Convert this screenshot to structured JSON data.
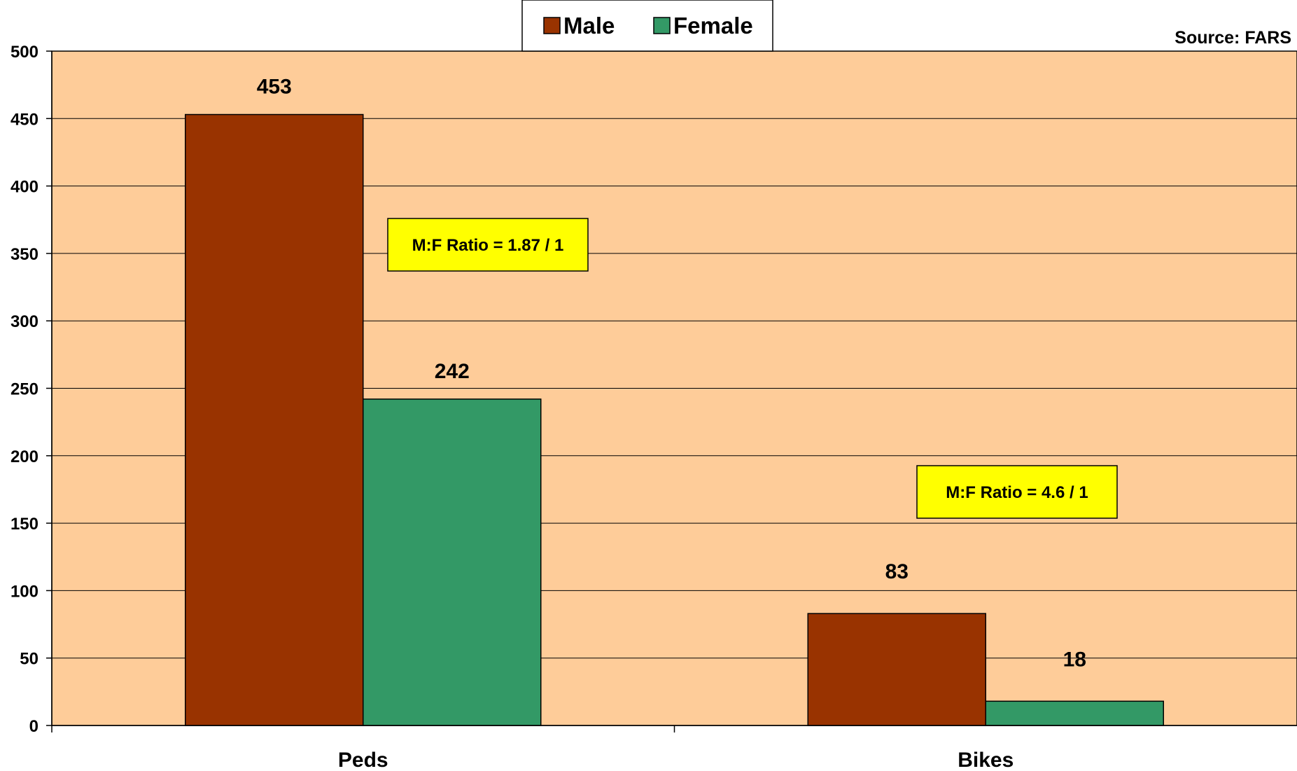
{
  "source_note": "Source: FARS",
  "annotations": [
    {
      "text": "M:F Ratio = 1.87 / 1"
    },
    {
      "text": "M:F Ratio = 4.6 / 1"
    }
  ],
  "colors": {
    "plot_background": "#FECC99",
    "male": "#993300",
    "female": "#339966",
    "annotation_fill": "#FFFF00",
    "gridline": "#000000"
  },
  "chart_data": {
    "type": "bar",
    "title": "",
    "xlabel": "",
    "ylabel": "",
    "categories": [
      "Peds",
      "Bikes"
    ],
    "series": [
      {
        "name": "Male",
        "values": [
          453,
          83
        ]
      },
      {
        "name": "Female",
        "values": [
          242,
          18
        ]
      }
    ],
    "ylim": [
      0,
      500
    ],
    "yticks": [
      0,
      50,
      100,
      150,
      200,
      250,
      300,
      350,
      400,
      450,
      500
    ],
    "grid": true,
    "legend_position": "top-center",
    "data_labels": true
  }
}
